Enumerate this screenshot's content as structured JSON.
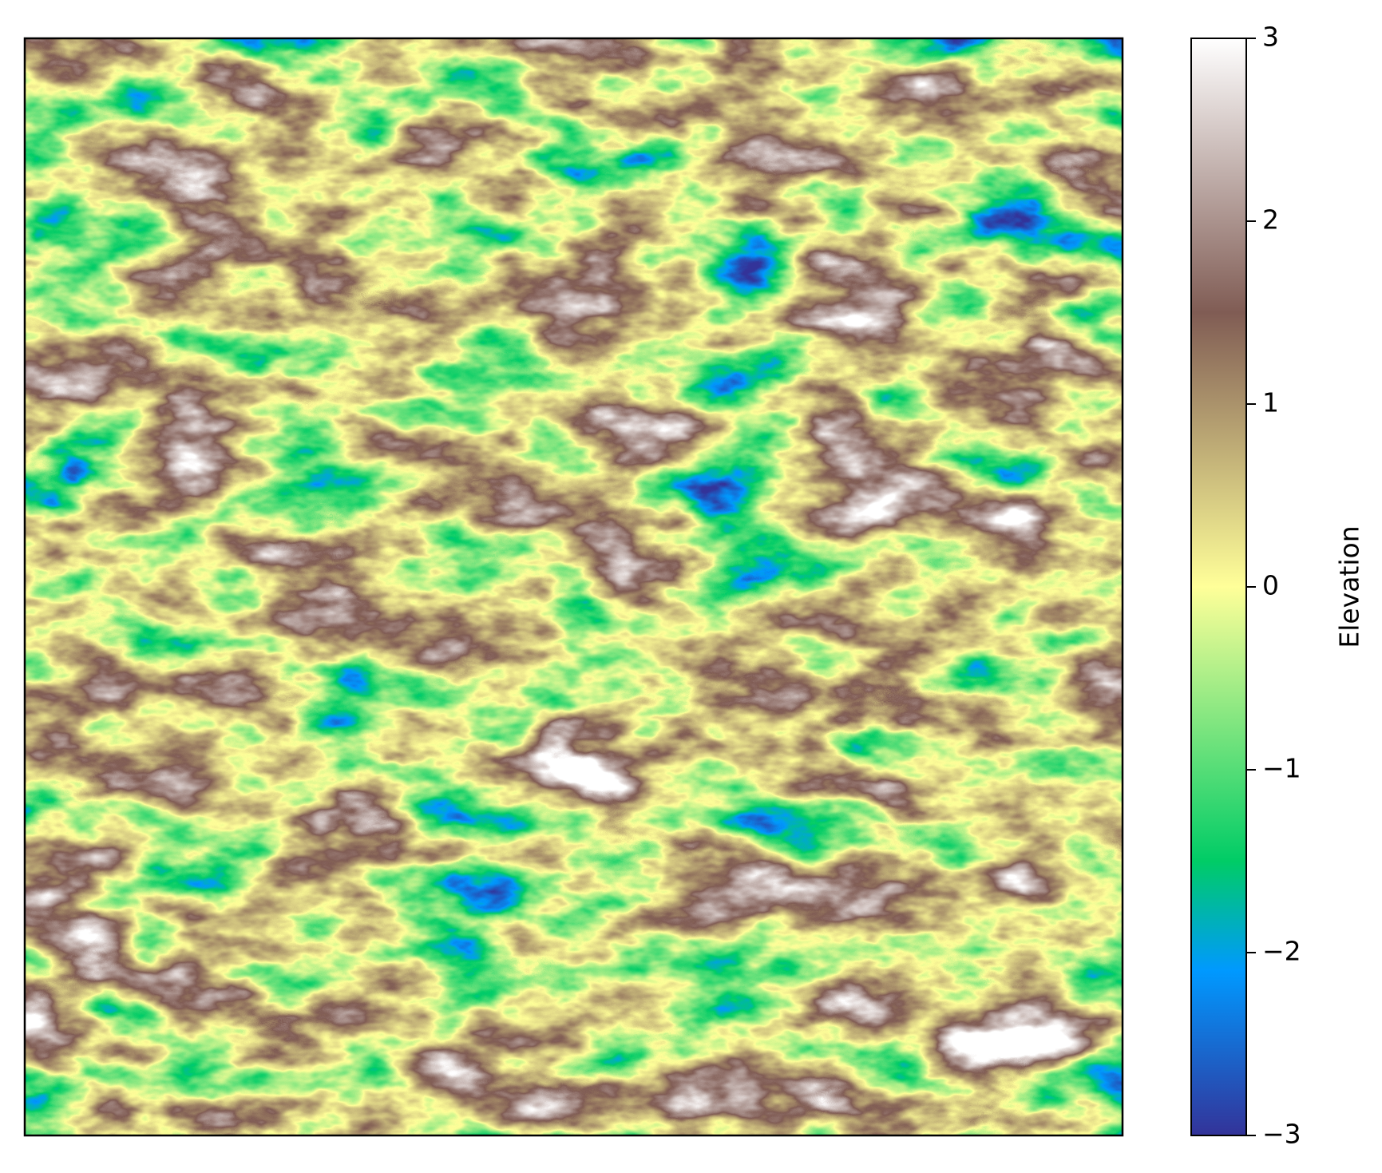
{
  "chart_data": {
    "type": "heatmap",
    "colorbar_label": "Elevation",
    "colormap": "terrain",
    "clim": [
      -3,
      3
    ],
    "cticks": [
      {
        "value": -3,
        "label": "−3"
      },
      {
        "value": -2,
        "label": "−2"
      },
      {
        "value": -1,
        "label": "−1"
      },
      0,
      1,
      2,
      3
    ]
  }
}
